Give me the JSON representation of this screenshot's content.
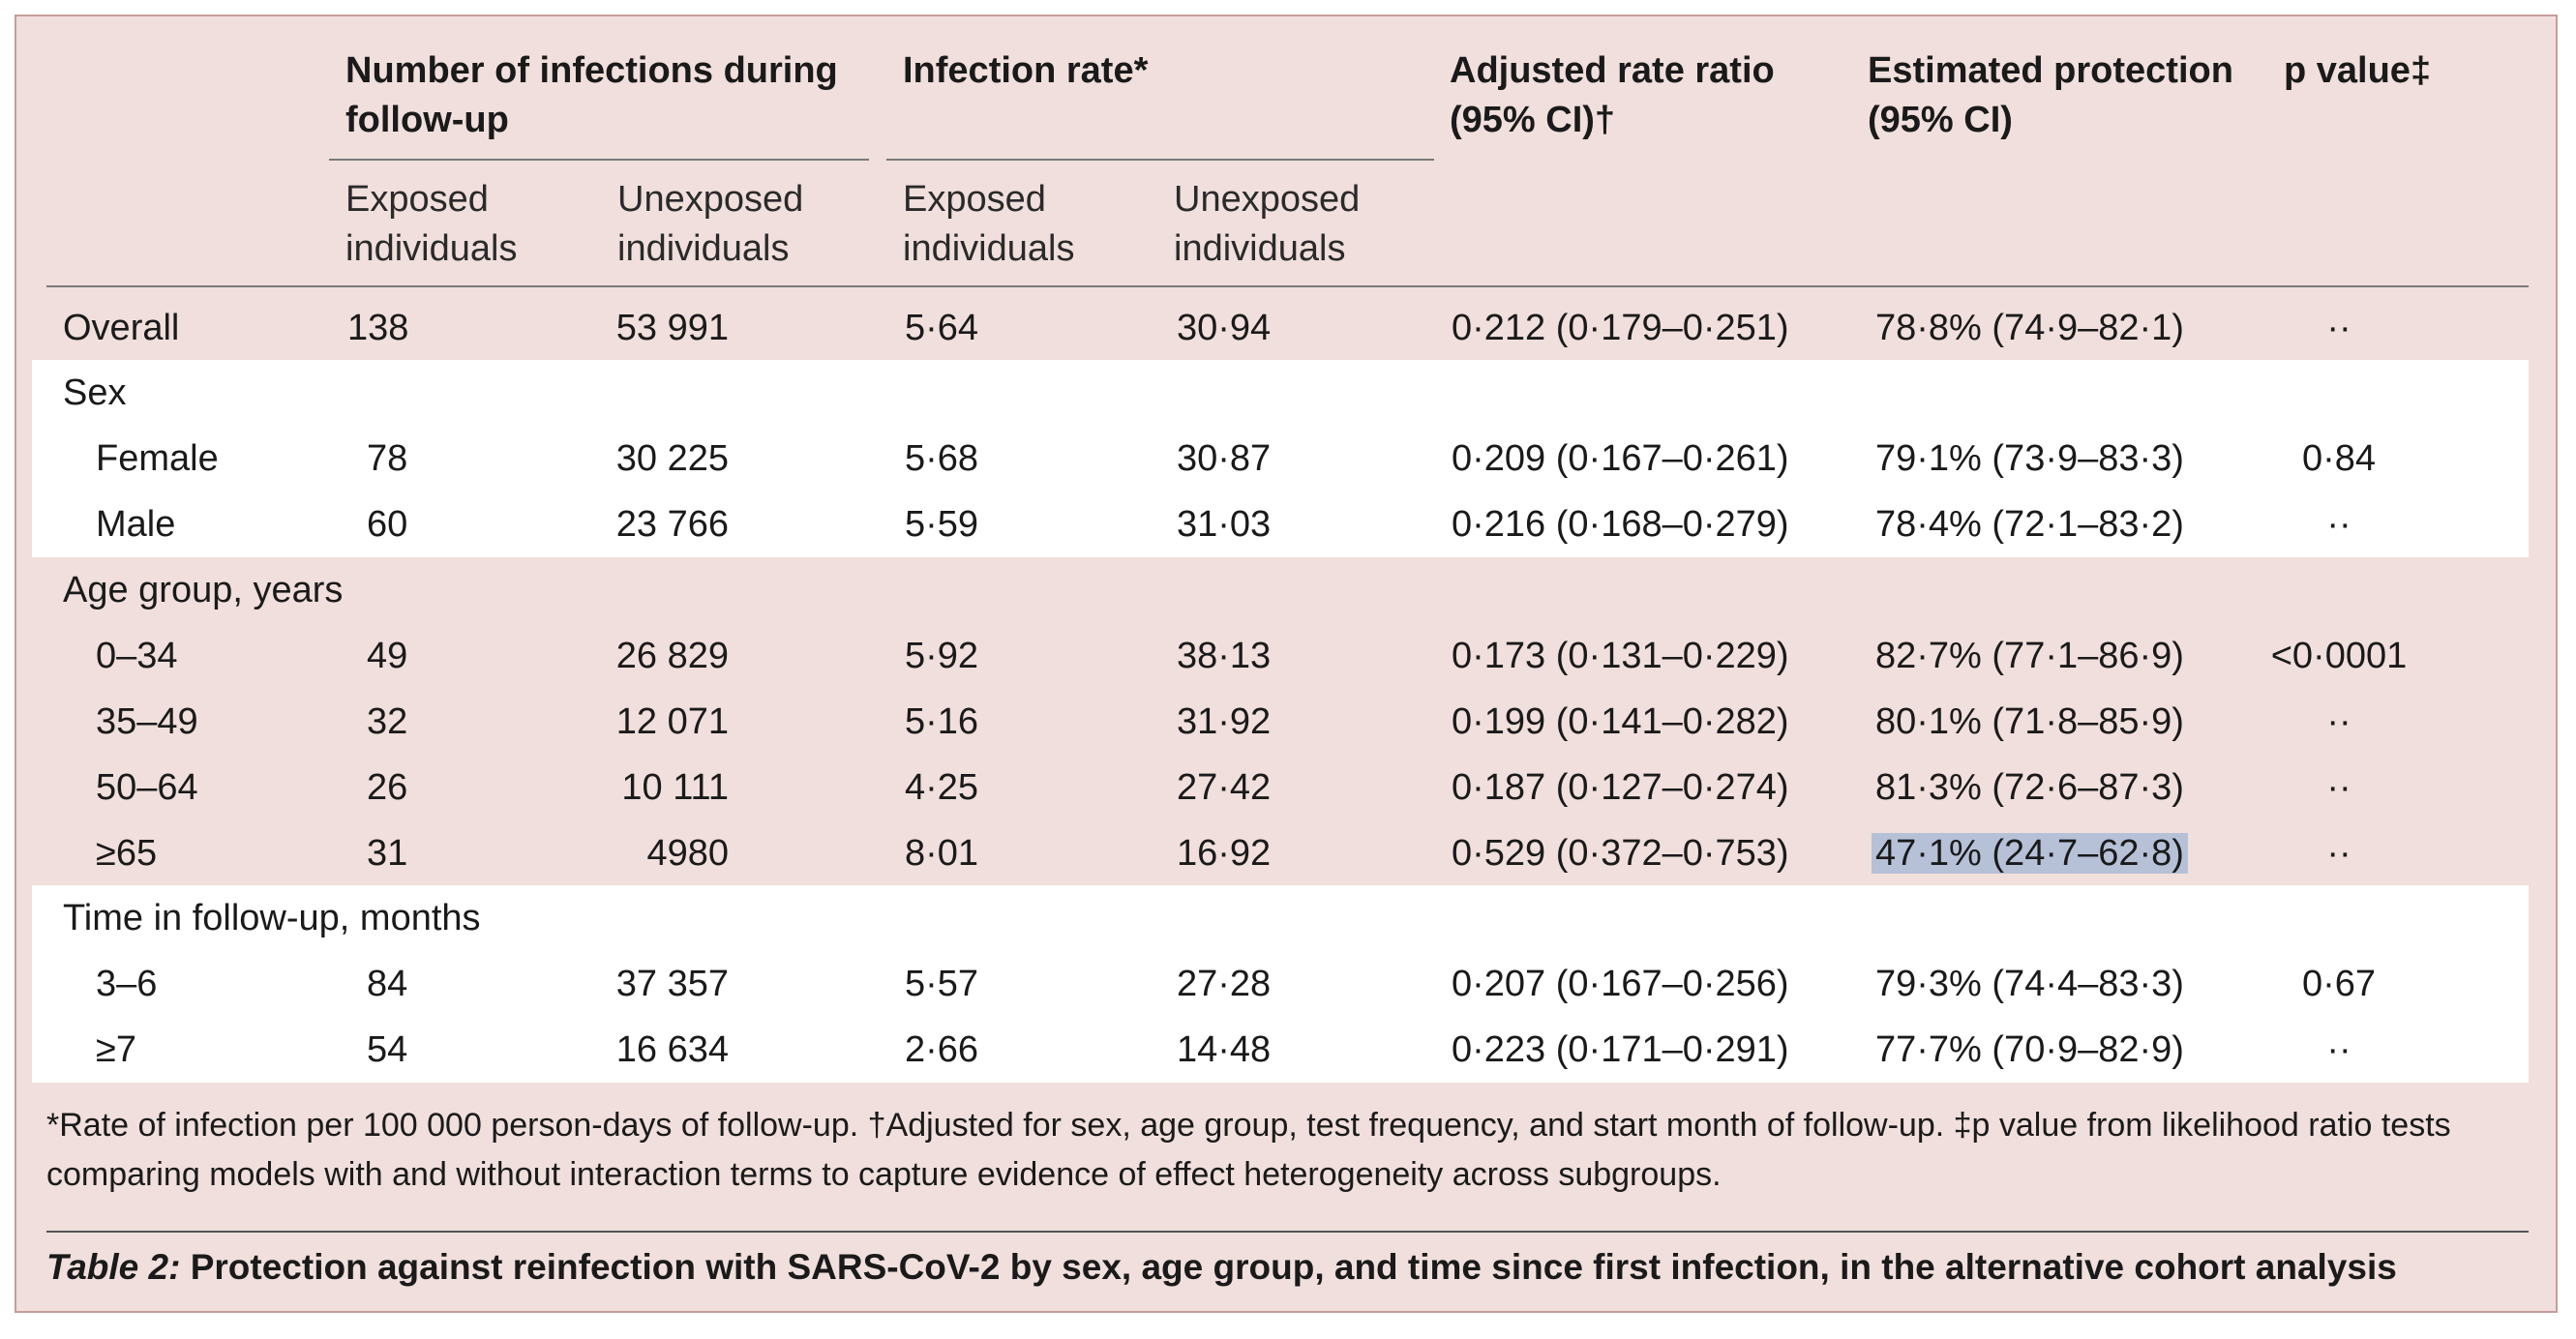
{
  "headers": {
    "infections": "Number of infections during",
    "infections2": "follow-up",
    "rate": "Infection rate*",
    "ratio": "Adjusted rate ratio",
    "ratio2": "(95% CI)†",
    "protection": "Estimated protection",
    "protection2": "(95% CI)",
    "pvalue": "p value‡",
    "exposed1": "Exposed",
    "exposed2": "individuals",
    "unexposed1": "Unexposed",
    "unexposed2": "individuals"
  },
  "sections": {
    "sex": "Sex",
    "age": "Age group, years",
    "time": "Time in follow-up, months"
  },
  "rows": {
    "overall": {
      "label": "Overall",
      "inf_exp": "138",
      "inf_unexp": "53 991",
      "rate_exp": "5·64",
      "rate_unexp": "30·94",
      "ratio": "0·212 (0·179–0·251)",
      "protection": "78·8% (74·9–82·1)",
      "p": "··"
    },
    "female": {
      "label": "Female",
      "inf_exp": "78",
      "inf_unexp": "30 225",
      "rate_exp": "5·68",
      "rate_unexp": "30·87",
      "ratio": "0·209 (0·167–0·261)",
      "protection": "79·1% (73·9–83·3)",
      "p": "0·84"
    },
    "male": {
      "label": "Male",
      "inf_exp": "60",
      "inf_unexp": "23 766",
      "rate_exp": "5·59",
      "rate_unexp": "31·03",
      "ratio": "0·216 (0·168–0·279)",
      "protection": "78·4% (72·1–83·2)",
      "p": "··"
    },
    "age0": {
      "label": "0–34",
      "inf_exp": "49",
      "inf_unexp": "26 829",
      "rate_exp": "5·92",
      "rate_unexp": "38·13",
      "ratio": "0·173 (0·131–0·229)",
      "protection": "82·7% (77·1–86·9)",
      "p": "<0·0001"
    },
    "age35": {
      "label": "35–49",
      "inf_exp": "32",
      "inf_unexp": "12 071",
      "rate_exp": "5·16",
      "rate_unexp": "31·92",
      "ratio": "0·199 (0·141–0·282)",
      "protection": "80·1% (71·8–85·9)",
      "p": "··"
    },
    "age50": {
      "label": "50–64",
      "inf_exp": "26",
      "inf_unexp": "10 111",
      "rate_exp": "4·25",
      "rate_unexp": "27·42",
      "ratio": "0·187 (0·127–0·274)",
      "protection": "81·3% (72·6–87·3)",
      "p": "··"
    },
    "age65": {
      "label": "≥65",
      "inf_exp": "31",
      "inf_unexp": "4980",
      "rate_exp": "8·01",
      "rate_unexp": "16·92",
      "ratio": "0·529 (0·372–0·753)",
      "protection": "47·1% (24·7–62·8)",
      "p": "··"
    },
    "t36": {
      "label": "3–6",
      "inf_exp": "84",
      "inf_unexp": "37 357",
      "rate_exp": "5·57",
      "rate_unexp": "27·28",
      "ratio": "0·207 (0·167–0·256)",
      "protection": "79·3% (74·4–83·3)",
      "p": "0·67"
    },
    "t7": {
      "label": "≥7",
      "inf_exp": "54",
      "inf_unexp": "16 634",
      "rate_exp": "2·66",
      "rate_unexp": "14·48",
      "ratio": "0·223 (0·171–0·291)",
      "protection": "77·7% (70·9–82·9)",
      "p": "··"
    }
  },
  "footnote": "*Rate of infection per 100 000 person-days of follow-up. †Adjusted for sex, age group, test frequency, and start month of follow-up. ‡p value from likelihood ratio tests comparing models with and without interaction terms to capture evidence of effect heterogeneity across subgroups.",
  "caption": {
    "label": "Table 2:",
    "text": " Protection against reinfection with SARS-CoV-2 by sex, age group, and time since first infection, in the alternative cohort analysis"
  }
}
